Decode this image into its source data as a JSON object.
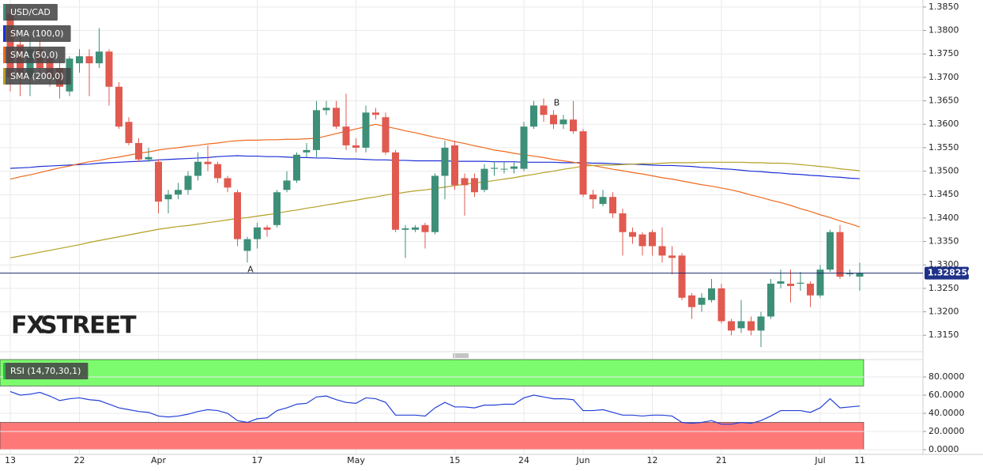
{
  "chart_data": [
    {
      "type": "candlestick",
      "name": "USD/CAD",
      "categories": [
        "13",
        null,
        null,
        null,
        null,
        null,
        null,
        "22",
        null,
        null,
        null,
        null,
        null,
        null,
        null,
        "Apr",
        null,
        null,
        null,
        null,
        null,
        null,
        null,
        null,
        null,
        "17",
        null,
        null,
        null,
        null,
        null,
        null,
        null,
        null,
        null,
        "May",
        null,
        null,
        null,
        null,
        null,
        null,
        null,
        null,
        null,
        "15",
        null,
        null,
        null,
        null,
        null,
        null,
        "24",
        null,
        null,
        null,
        null,
        null,
        "Jun",
        null,
        null,
        null,
        null,
        null,
        null,
        "12",
        null,
        null,
        null,
        null,
        null,
        null,
        "21",
        null,
        null,
        null,
        null,
        null,
        null,
        null,
        null,
        null,
        "Jul",
        null,
        null,
        null,
        "11"
      ],
      "open": [
        1.3835,
        1.377,
        1.37,
        1.376,
        1.374,
        1.372,
        1.367,
        1.373,
        1.3745,
        1.373,
        1.3755,
        1.368,
        1.3605,
        1.356,
        1.3525,
        1.352,
        1.344,
        1.345,
        1.346,
        1.349,
        1.352,
        1.3515,
        1.3485,
        1.3455,
        1.333,
        1.3355,
        1.338,
        1.3385,
        1.346,
        1.348,
        1.354,
        1.3545,
        1.363,
        1.3635,
        1.3595,
        1.3555,
        1.355,
        1.3625,
        1.3615,
        1.354,
        1.3375,
        1.3375,
        1.3385,
        1.337,
        1.349,
        1.3555,
        1.3485,
        1.3485,
        1.346,
        1.3505,
        1.3505,
        1.3505,
        1.3505,
        1.3595,
        1.364,
        1.362,
        1.36,
        1.361,
        1.3585,
        1.345,
        1.343,
        1.3445,
        1.341,
        1.337,
        1.3365,
        1.337,
        1.334,
        1.332,
        1.332,
        1.3235,
        1.3215,
        1.3225,
        1.325,
        1.318,
        1.3165,
        1.318,
        1.316,
        1.319,
        1.326,
        1.326,
        1.326,
        1.326,
        1.3235,
        1.329,
        1.337,
        1.328,
        1.3275
      ],
      "high": [
        1.385,
        1.379,
        1.379,
        1.378,
        1.376,
        1.374,
        1.3745,
        1.376,
        1.376,
        1.3805,
        1.376,
        1.369,
        1.3615,
        1.357,
        1.355,
        1.3525,
        1.346,
        1.3475,
        1.35,
        1.354,
        1.3555,
        1.352,
        1.349,
        1.346,
        1.336,
        1.339,
        1.3385,
        1.346,
        1.35,
        1.354,
        1.356,
        1.365,
        1.365,
        1.365,
        1.3665,
        1.357,
        1.364,
        1.3635,
        1.3625,
        1.3545,
        1.3385,
        1.3385,
        1.339,
        1.3495,
        1.3565,
        1.3565,
        1.3495,
        1.3495,
        1.3515,
        1.352,
        1.352,
        1.352,
        1.3605,
        1.365,
        1.3655,
        1.363,
        1.362,
        1.365,
        1.359,
        1.346,
        1.346,
        1.3455,
        1.342,
        1.338,
        1.337,
        1.3375,
        1.338,
        1.334,
        1.3325,
        1.324,
        1.324,
        1.327,
        1.326,
        1.3185,
        1.3225,
        1.319,
        1.32,
        1.327,
        1.329,
        1.329,
        1.3285,
        1.3265,
        1.33,
        1.3375,
        1.3385,
        1.329,
        1.3305
      ],
      "low": [
        1.367,
        1.366,
        1.366,
        1.369,
        1.368,
        1.3655,
        1.366,
        1.371,
        1.366,
        1.372,
        1.364,
        1.359,
        1.3555,
        1.352,
        1.352,
        1.341,
        1.341,
        1.344,
        1.345,
        1.348,
        1.35,
        1.3475,
        1.3455,
        1.334,
        1.3305,
        1.3335,
        1.336,
        1.338,
        1.3455,
        1.3475,
        1.353,
        1.353,
        1.362,
        1.359,
        1.3545,
        1.354,
        1.354,
        1.361,
        1.3535,
        1.337,
        1.3315,
        1.337,
        1.3335,
        1.3365,
        1.344,
        1.346,
        1.3405,
        1.3445,
        1.3455,
        1.349,
        1.3495,
        1.3495,
        1.35,
        1.359,
        1.3605,
        1.359,
        1.359,
        1.358,
        1.3445,
        1.342,
        1.3425,
        1.34,
        1.332,
        1.3345,
        1.332,
        1.332,
        1.3305,
        1.328,
        1.3225,
        1.3185,
        1.32,
        1.322,
        1.3175,
        1.315,
        1.3155,
        1.315,
        1.3125,
        1.3185,
        1.325,
        1.322,
        1.3245,
        1.321,
        1.323,
        1.3285,
        1.327,
        1.3275,
        1.3245
      ],
      "close": [
        1.37,
        1.37,
        1.376,
        1.372,
        1.37,
        1.368,
        1.374,
        1.3745,
        1.373,
        1.3755,
        1.368,
        1.3595,
        1.356,
        1.3525,
        1.353,
        1.3435,
        1.345,
        1.346,
        1.349,
        1.352,
        1.3515,
        1.3485,
        1.3465,
        1.3355,
        1.3355,
        1.338,
        1.3375,
        1.3455,
        1.348,
        1.3535,
        1.3545,
        1.363,
        1.3635,
        1.3595,
        1.3555,
        1.355,
        1.3625,
        1.362,
        1.354,
        1.3375,
        1.3378,
        1.338,
        1.337,
        1.349,
        1.355,
        1.347,
        1.347,
        1.3455,
        1.3505,
        1.3507,
        1.3505,
        1.351,
        1.3595,
        1.364,
        1.362,
        1.36,
        1.361,
        1.3585,
        1.345,
        1.344,
        1.3445,
        1.341,
        1.337,
        1.336,
        1.334,
        1.334,
        1.332,
        1.3315,
        1.323,
        1.321,
        1.323,
        1.325,
        1.318,
        1.316,
        1.318,
        1.316,
        1.319,
        1.326,
        1.3265,
        1.3255,
        1.3262,
        1.3235,
        1.329,
        1.337,
        1.3275,
        1.3282,
        1.3283
      ],
      "up_color": "#3d8f78",
      "down_color": "#e05a50",
      "series": [
        {
          "name": "SMA (100,0)",
          "color": "#1c2fd6",
          "values": [
            1.3506,
            1.3507,
            1.3508,
            1.351,
            1.3511,
            1.3512,
            1.3513,
            1.3514,
            1.3515,
            1.3517,
            1.3518,
            1.3519,
            1.352,
            1.3521,
            1.3522,
            1.3524,
            1.3525,
            1.3526,
            1.3527,
            1.3528,
            1.3529,
            1.3531,
            1.3532,
            1.3533,
            1.3532,
            1.3532,
            1.3531,
            1.3531,
            1.353,
            1.3529,
            1.3529,
            1.3528,
            1.3528,
            1.3527,
            1.3526,
            1.3526,
            1.3525,
            1.3524,
            1.3524,
            1.3523,
            1.3523,
            1.3522,
            1.3522,
            1.3522,
            1.3522,
            1.3521,
            1.3521,
            1.3521,
            1.3521,
            1.352,
            1.352,
            1.352,
            1.3519,
            1.3519,
            1.3519,
            1.3519,
            1.3518,
            1.3518,
            1.3518,
            1.3517,
            1.3517,
            1.3516,
            1.3515,
            1.3515,
            1.3514,
            1.3513,
            1.3512,
            1.3512,
            1.3511,
            1.351,
            1.3508,
            1.3507,
            1.3505,
            1.3504,
            1.3502,
            1.35,
            1.3499,
            1.3497,
            1.3496,
            1.3494,
            1.3493,
            1.3491,
            1.349,
            1.3488,
            1.3487,
            1.3485,
            1.3484
          ]
        },
        {
          "name": "SMA (50,0)",
          "color": "#ee6a1e",
          "values": [
            1.3483,
            1.3488,
            1.3492,
            1.3497,
            1.3502,
            1.3507,
            1.3511,
            1.3516,
            1.352,
            1.3523,
            1.3527,
            1.353,
            1.3534,
            1.3538,
            1.3541,
            1.3545,
            1.3548,
            1.355,
            1.3553,
            1.3555,
            1.3558,
            1.356,
            1.3563,
            1.3565,
            1.3566,
            1.3566,
            1.3567,
            1.3567,
            1.3568,
            1.3568,
            1.3569,
            1.357,
            1.3575,
            1.358,
            1.3585,
            1.359,
            1.3595,
            1.36,
            1.3595,
            1.3591,
            1.3586,
            1.3582,
            1.3577,
            1.3572,
            1.3568,
            1.3563,
            1.3559,
            1.3554,
            1.355,
            1.3545,
            1.3542,
            1.3538,
            1.3535,
            1.3532,
            1.3529,
            1.3525,
            1.3522,
            1.3519,
            1.3515,
            1.3512,
            1.3508,
            1.3504,
            1.3501,
            1.3497,
            1.3494,
            1.349,
            1.3486,
            1.3483,
            1.3479,
            1.3475,
            1.3471,
            1.3468,
            1.3464,
            1.346,
            1.3455,
            1.3449,
            1.3444,
            1.3438,
            1.3433,
            1.3427,
            1.342,
            1.3414,
            1.3407,
            1.3401,
            1.3394,
            1.3388,
            1.3381
          ]
        },
        {
          "name": "SMA (200,0)",
          "color": "#b3a024",
          "values": [
            1.3315,
            1.3319,
            1.3323,
            1.3327,
            1.3331,
            1.3335,
            1.3339,
            1.3343,
            1.3348,
            1.3352,
            1.3356,
            1.336,
            1.3364,
            1.3368,
            1.3372,
            1.3376,
            1.3379,
            1.3382,
            1.3384,
            1.3387,
            1.339,
            1.3393,
            1.3396,
            1.3399,
            1.3401,
            1.3404,
            1.3407,
            1.341,
            1.3414,
            1.3417,
            1.3421,
            1.3424,
            1.3428,
            1.3431,
            1.3435,
            1.3438,
            1.3442,
            1.3445,
            1.3449,
            1.3452,
            1.3455,
            1.3458,
            1.346,
            1.3463,
            1.3466,
            1.3469,
            1.3472,
            1.3475,
            1.3477,
            1.348,
            1.3483,
            1.3486,
            1.349,
            1.3493,
            1.3497,
            1.35,
            1.3504,
            1.3507,
            1.3511,
            1.3512,
            1.3513,
            1.3513,
            1.3514,
            1.3515,
            1.3516,
            1.3516,
            1.3517,
            1.3518,
            1.3518,
            1.3518,
            1.3519,
            1.3519,
            1.3519,
            1.3519,
            1.3519,
            1.3518,
            1.3518,
            1.3517,
            1.3517,
            1.3516,
            1.3514,
            1.3512,
            1.351,
            1.3508,
            1.3505,
            1.3503,
            1.3501
          ]
        }
      ],
      "ylim": [
        1.3115,
        1.3865
      ],
      "yticks": [
        {
          "value": 1.315,
          "label": "1.3150"
        },
        {
          "value": 1.32,
          "label": "1.3200"
        },
        {
          "value": 1.325,
          "label": "1.3250"
        },
        {
          "value": 1.33,
          "label": "1.3300"
        },
        {
          "value": 1.335,
          "label": "1.3350"
        },
        {
          "value": 1.34,
          "label": "1.3400"
        },
        {
          "value": 1.345,
          "label": "1.3450"
        },
        {
          "value": 1.35,
          "label": "1.3500"
        },
        {
          "value": 1.355,
          "label": "1.3550"
        },
        {
          "value": 1.36,
          "label": "1.3600"
        },
        {
          "value": 1.365,
          "label": "1.3650"
        },
        {
          "value": 1.37,
          "label": "1.3700"
        },
        {
          "value": 1.375,
          "label": "1.3750"
        },
        {
          "value": 1.38,
          "label": "1.3800"
        },
        {
          "value": 1.385,
          "label": "1.3850"
        }
      ],
      "last_price": {
        "value": 1.32825,
        "label": "1.328250"
      },
      "annotations": [
        {
          "text": "A"
        },
        {
          "text": "B"
        }
      ],
      "watermark": [
        "FX",
        "STREET"
      ],
      "grid": true
    },
    {
      "type": "line",
      "series": [
        {
          "name": "RSI (14,70,30,1)",
          "color": "#2441d8",
          "values": [
            64,
            60,
            61,
            63,
            59,
            54,
            56,
            57,
            55,
            54,
            50,
            46,
            44,
            42,
            41,
            37,
            36,
            37,
            39,
            42,
            44,
            43,
            40,
            32,
            30,
            34,
            35,
            43,
            46,
            50,
            51,
            58,
            59,
            55,
            52,
            51,
            57,
            56,
            52,
            38,
            38,
            38,
            37,
            46,
            52,
            47,
            47,
            46,
            49,
            49,
            50,
            50,
            57,
            60,
            58,
            56,
            56,
            55,
            43,
            43,
            44,
            41,
            38,
            38,
            37,
            38,
            38,
            37,
            30,
            29,
            30,
            32,
            28,
            28,
            30,
            29,
            32,
            37,
            43,
            43,
            43,
            41,
            46,
            56,
            46,
            47,
            48
          ]
        }
      ],
      "bands": [
        {
          "from": 70,
          "to": 99.1,
          "color": "#7cfb6e"
        },
        {
          "from": 0,
          "to": 30,
          "color": "#ff7878"
        }
      ],
      "ylim": [
        -5.2,
        99.1
      ],
      "yticks": [
        {
          "value": 0,
          "label": "0.0000"
        },
        {
          "value": 20,
          "label": "20.0000"
        },
        {
          "value": 40,
          "label": "40.0000"
        },
        {
          "value": 60,
          "label": "60.0000"
        },
        {
          "value": 80,
          "label": "80.0000"
        }
      ],
      "grid": true
    }
  ]
}
